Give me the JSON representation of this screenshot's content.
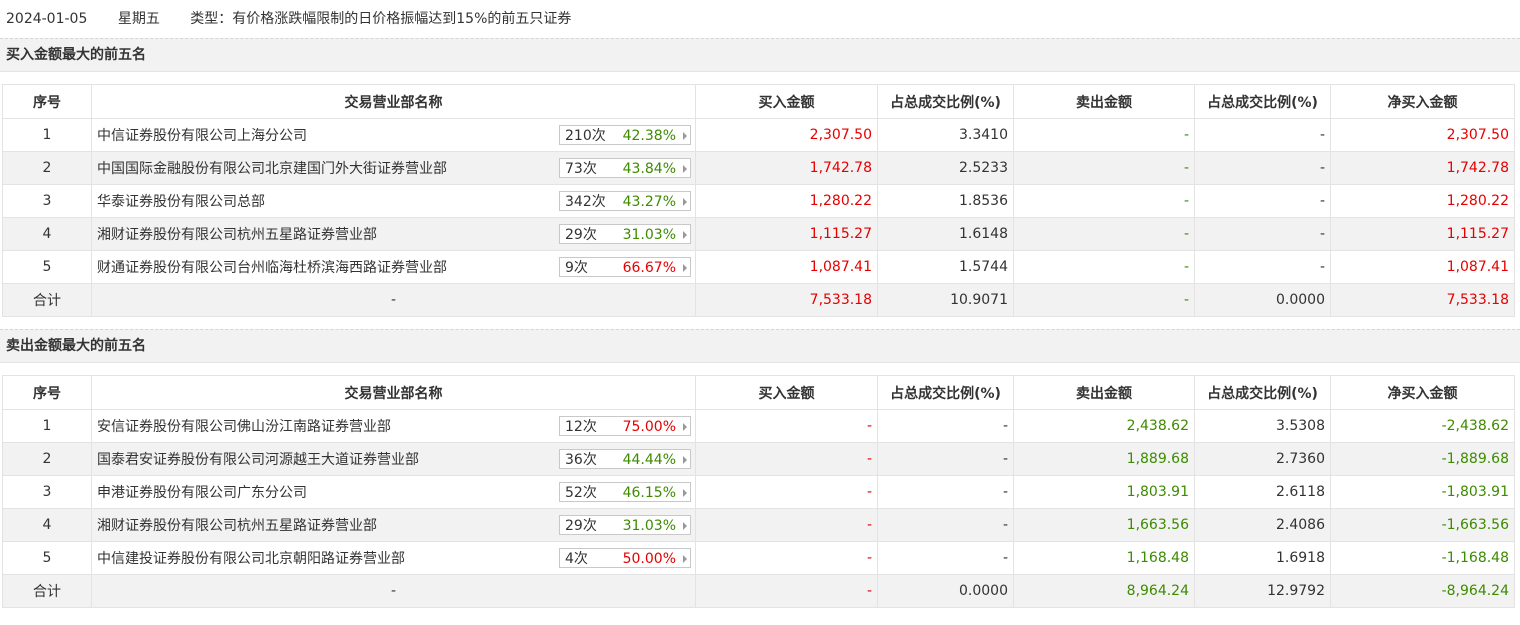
{
  "header": {
    "date": "2024-01-05",
    "weekday": "星期五",
    "type": "类型：有价格涨跌幅限制的日价格振幅达到15%的前五只证券"
  },
  "columns": {
    "seq": "序号",
    "name": "交易营业部名称",
    "buy": "买入金额",
    "buy_pct": "占总成交比例(%)",
    "sell": "卖出金额",
    "sell_pct": "占总成交比例(%)",
    "net": "净买入金额"
  },
  "buy_section": {
    "title": "买入金额最大的前五名",
    "rows": [
      {
        "seq": "1",
        "name": "中信证券股份有限公司上海分公司",
        "count": "210次",
        "rate": "42.38%",
        "buy": "2,307.50",
        "buy_pct": "3.3410",
        "sell": "-",
        "sell_pct": "-",
        "net": "2,307.50"
      },
      {
        "seq": "2",
        "name": "中国国际金融股份有限公司北京建国门外大街证券营业部",
        "count": "73次",
        "rate": "43.84%",
        "buy": "1,742.78",
        "buy_pct": "2.5233",
        "sell": "-",
        "sell_pct": "-",
        "net": "1,742.78"
      },
      {
        "seq": "3",
        "name": "华泰证券股份有限公司总部",
        "count": "342次",
        "rate": "43.27%",
        "buy": "1,280.22",
        "buy_pct": "1.8536",
        "sell": "-",
        "sell_pct": "-",
        "net": "1,280.22"
      },
      {
        "seq": "4",
        "name": "湘财证券股份有限公司杭州五星路证券营业部",
        "count": "29次",
        "rate": "31.03%",
        "buy": "1,115.27",
        "buy_pct": "1.6148",
        "sell": "-",
        "sell_pct": "-",
        "net": "1,115.27"
      },
      {
        "seq": "5",
        "name": "财通证券股份有限公司台州临海杜桥滨海西路证券营业部",
        "count": "9次",
        "rate": "66.67%",
        "buy": "1,087.41",
        "buy_pct": "1.5744",
        "sell": "-",
        "sell_pct": "-",
        "net": "1,087.41"
      }
    ],
    "total": {
      "label": "合计",
      "name": "-",
      "buy": "7,533.18",
      "buy_pct": "10.9071",
      "sell": "-",
      "sell_pct": "0.0000",
      "net": "7,533.18"
    }
  },
  "sell_section": {
    "title": "卖出金额最大的前五名",
    "rows": [
      {
        "seq": "1",
        "name": "安信证券股份有限公司佛山汾江南路证券营业部",
        "count": "12次",
        "rate": "75.00%",
        "buy": "-",
        "buy_pct": "-",
        "sell": "2,438.62",
        "sell_pct": "3.5308",
        "net": "-2,438.62"
      },
      {
        "seq": "2",
        "name": "国泰君安证券股份有限公司河源越王大道证券营业部",
        "count": "36次",
        "rate": "44.44%",
        "buy": "-",
        "buy_pct": "-",
        "sell": "1,889.68",
        "sell_pct": "2.7360",
        "net": "-1,889.68"
      },
      {
        "seq": "3",
        "name": "申港证券股份有限公司广东分公司",
        "count": "52次",
        "rate": "46.15%",
        "buy": "-",
        "buy_pct": "-",
        "sell": "1,803.91",
        "sell_pct": "2.6118",
        "net": "-1,803.91"
      },
      {
        "seq": "4",
        "name": "湘财证券股份有限公司杭州五星路证券营业部",
        "count": "29次",
        "rate": "31.03%",
        "buy": "-",
        "buy_pct": "-",
        "sell": "1,663.56",
        "sell_pct": "2.4086",
        "net": "-1,663.56"
      },
      {
        "seq": "5",
        "name": "中信建投证券股份有限公司北京朝阳路证券营业部",
        "count": "4次",
        "rate": "50.00%",
        "buy": "-",
        "buy_pct": "-",
        "sell": "1,168.48",
        "sell_pct": "1.6918",
        "net": "-1,168.48"
      }
    ],
    "total": {
      "label": "合计",
      "name": "-",
      "buy": "-",
      "buy_pct": "0.0000",
      "sell": "8,964.24",
      "sell_pct": "12.9792",
      "net": "-8,964.24"
    }
  },
  "colors": {
    "red": "#e60000",
    "green": "#3d8b00",
    "alt_row": "#f2f2f2"
  },
  "icons": {
    "pill_arrow": "caret-right-icon"
  }
}
